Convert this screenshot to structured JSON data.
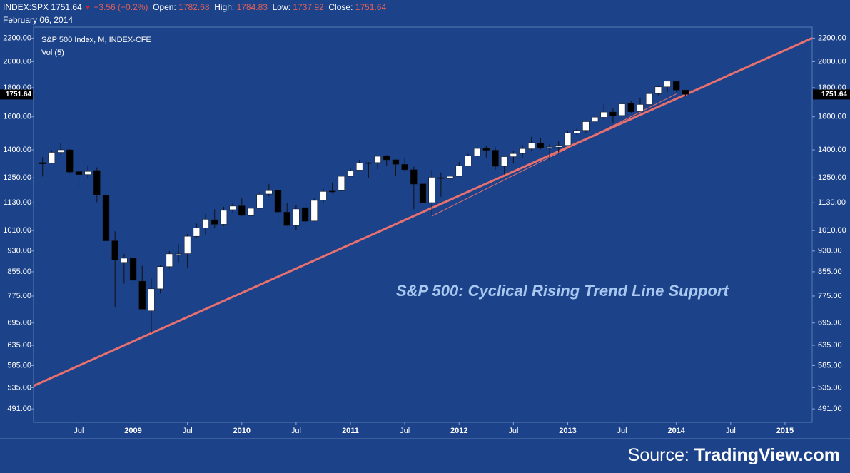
{
  "header": {
    "symbol": "INDEX:SPX",
    "last": "1751.64",
    "change": "−3.56 (−0.2%)",
    "open_label": "Open:",
    "open": "1782.68",
    "high_label": "High:",
    "high": "1784.83",
    "low_label": "Low:",
    "low": "1737.92",
    "close_label": "Close:",
    "close": "1751.64",
    "date": "February 06, 2014"
  },
  "chart_data": {
    "type": "candlestick",
    "title": "S&P 500 Index, M, INDEX-CFE",
    "subtitle": "Vol (5)",
    "annotation": "S&P 500: Cyclical Rising Trend Line Support",
    "source_prefix": "Source:",
    "source": "TradingView.com",
    "log_scale": true,
    "grid": false,
    "up_color": "#ffffff",
    "down_color": "#000000",
    "background": "#1c4289",
    "last_value": 1751.64,
    "x": [
      "2008-03",
      "2008-04",
      "2008-05",
      "2008-06",
      "2008-07",
      "2008-08",
      "2008-09",
      "2008-10",
      "2008-11",
      "2008-12",
      "2009-01",
      "2009-02",
      "2009-03",
      "2009-04",
      "2009-05",
      "2009-06",
      "2009-07",
      "2009-08",
      "2009-09",
      "2009-10",
      "2009-11",
      "2009-12",
      "2010-01",
      "2010-02",
      "2010-03",
      "2010-04",
      "2010-05",
      "2010-06",
      "2010-07",
      "2010-08",
      "2010-09",
      "2010-10",
      "2010-11",
      "2010-12",
      "2011-01",
      "2011-02",
      "2011-03",
      "2011-04",
      "2011-05",
      "2011-06",
      "2011-07",
      "2011-08",
      "2011-09",
      "2011-10",
      "2011-11",
      "2011-12",
      "2012-01",
      "2012-02",
      "2012-03",
      "2012-04",
      "2012-05",
      "2012-06",
      "2012-07",
      "2012-08",
      "2012-09",
      "2012-10",
      "2012-11",
      "2012-12",
      "2013-01",
      "2013-02",
      "2013-03",
      "2013-04",
      "2013-05",
      "2013-06",
      "2013-07",
      "2013-08",
      "2013-09",
      "2013-10",
      "2013-11",
      "2013-12",
      "2014-01",
      "2014-02"
    ],
    "open": [
      1330,
      1327,
      1386,
      1400,
      1282,
      1267,
      1288,
      1164,
      969,
      888,
      903,
      823,
      730,
      798,
      873,
      919,
      920,
      987,
      1020,
      1055,
      1036,
      1099,
      1116,
      1073,
      1105,
      1171,
      1188,
      1088,
      1031,
      1108,
      1050,
      1143,
      1185,
      1187,
      1258,
      1290,
      1329,
      1330,
      1365,
      1345,
      1320,
      1292,
      1220,
      1131,
      1251,
      1247,
      1258,
      1313,
      1366,
      1408,
      1398,
      1310,
      1362,
      1380,
      1406,
      1440,
      1412,
      1416,
      1426,
      1498,
      1515,
      1569,
      1597,
      1631,
      1609,
      1689,
      1636,
      1682,
      1758,
      1806,
      1846,
      1783
    ],
    "high": [
      1359,
      1397,
      1440,
      1404,
      1292,
      1313,
      1304,
      1167,
      1007,
      919,
      944,
      876,
      832,
      877,
      930,
      956,
      996,
      1039,
      1080,
      1101,
      1112,
      1130,
      1150,
      1112,
      1181,
      1220,
      1206,
      1131,
      1120,
      1130,
      1150,
      1196,
      1227,
      1263,
      1303,
      1345,
      1333,
      1367,
      1371,
      1346,
      1357,
      1308,
      1230,
      1292,
      1278,
      1269,
      1333,
      1378,
      1420,
      1422,
      1415,
      1363,
      1392,
      1427,
      1475,
      1470,
      1434,
      1448,
      1510,
      1530,
      1570,
      1598,
      1687,
      1654,
      1698,
      1709,
      1730,
      1775,
      1814,
      1849,
      1851,
      1785
    ],
    "low": [
      1257,
      1324,
      1373,
      1272,
      1200,
      1248,
      1133,
      840,
      741,
      815,
      805,
      735,
      667,
      783,
      866,
      888,
      869,
      979,
      992,
      1020,
      1029,
      1086,
      1071,
      1045,
      1105,
      1160,
      1040,
      1029,
      1011,
      1040,
      1048,
      1131,
      1173,
      1187,
      1257,
      1289,
      1249,
      1294,
      1311,
      1258,
      1282,
      1101,
      1114,
      1075,
      1158,
      1202,
      1259,
      1312,
      1340,
      1358,
      1292,
      1267,
      1325,
      1354,
      1396,
      1403,
      1343,
      1385,
      1426,
      1486,
      1501,
      1536,
      1581,
      1560,
      1605,
      1627,
      1633,
      1646,
      1746,
      1767,
      1770,
      1738
    ],
    "close": [
      1323,
      1386,
      1400,
      1280,
      1267,
      1283,
      1166,
      969,
      896,
      903,
      826,
      735,
      798,
      873,
      919,
      919,
      987,
      1021,
      1057,
      1036,
      1096,
      1115,
      1074,
      1105,
      1169,
      1187,
      1089,
      1031,
      1102,
      1049,
      1141,
      1183,
      1181,
      1258,
      1286,
      1327,
      1326,
      1364,
      1345,
      1321,
      1292,
      1219,
      1131,
      1253,
      1247,
      1258,
      1312,
      1366,
      1408,
      1398,
      1310,
      1362,
      1379,
      1407,
      1441,
      1412,
      1416,
      1426,
      1498,
      1515,
      1569,
      1598,
      1631,
      1606,
      1686,
      1633,
      1682,
      1757,
      1806,
      1848,
      1783,
      1752
    ],
    "trend_lines": [
      {
        "x": [
          "2008-02",
          "2015-04"
        ],
        "y": [
          539,
          2200
        ],
        "color": "#e8706f"
      },
      {
        "x": [
          "2011-10",
          "2014-01"
        ],
        "y": [
          1071,
          1755
        ],
        "color": "#e8706f"
      }
    ],
    "xlim": [
      "2008-02",
      "2015-04"
    ],
    "xticks": [
      {
        "value": "2008-07",
        "label": "Jul"
      },
      {
        "value": "2009-01",
        "label": "2009"
      },
      {
        "value": "2009-07",
        "label": "Jul"
      },
      {
        "value": "2010-01",
        "label": "2010"
      },
      {
        "value": "2010-07",
        "label": "Jul"
      },
      {
        "value": "2011-01",
        "label": "2011"
      },
      {
        "value": "2011-07",
        "label": "Jul"
      },
      {
        "value": "2012-01",
        "label": "2012"
      },
      {
        "value": "2012-07",
        "label": "Jul"
      },
      {
        "value": "2013-01",
        "label": "2013"
      },
      {
        "value": "2013-07",
        "label": "Jul"
      },
      {
        "value": "2014-01",
        "label": "2014"
      },
      {
        "value": "2014-07",
        "label": "Jul"
      },
      {
        "value": "2015-01",
        "label": "2015"
      }
    ],
    "ylim": [
      465,
      2300
    ],
    "yticks": [
      {
        "value": 491,
        "label": "491.00"
      },
      {
        "value": 535,
        "label": "535.00"
      },
      {
        "value": 585,
        "label": "585.00"
      },
      {
        "value": 635,
        "label": "635.00"
      },
      {
        "value": 695,
        "label": "695.00"
      },
      {
        "value": 775,
        "label": "775.00"
      },
      {
        "value": 855,
        "label": "855.00"
      },
      {
        "value": 930,
        "label": "930.00"
      },
      {
        "value": 1010,
        "label": "1010.00"
      },
      {
        "value": 1130,
        "label": "1130.00"
      },
      {
        "value": 1250,
        "label": "1250.00"
      },
      {
        "value": 1400,
        "label": "1400.00"
      },
      {
        "value": 1600,
        "label": "1600.00"
      },
      {
        "value": 1800,
        "label": "1800.00"
      },
      {
        "value": 2000,
        "label": "2000.00"
      },
      {
        "value": 2200,
        "label": "2200.00"
      }
    ]
  }
}
